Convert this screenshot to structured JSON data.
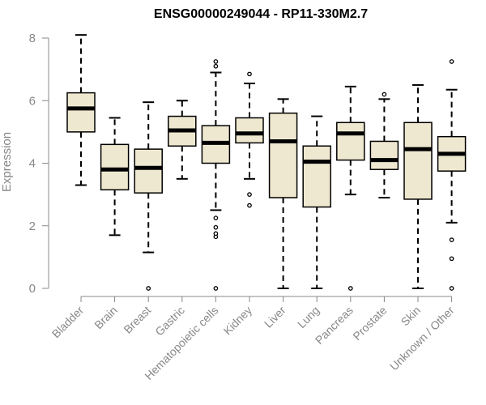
{
  "chart_data": {
    "type": "boxplot",
    "title": "ENSG00000249044 - RP11-330M2.7",
    "xlabel": "",
    "ylabel": "Expression",
    "ylim": [
      0,
      8
    ],
    "yticks": [
      0,
      2,
      4,
      6,
      8
    ],
    "colors": {
      "box_fill": "#efe8d0",
      "box_stroke": "#000000",
      "axis": "#888888"
    },
    "categories": [
      "Bladder",
      "Brain",
      "Breast",
      "Gastric",
      "Hematopoietic cells",
      "Kidney",
      "Liver",
      "Lung",
      "Pancreas",
      "Prostate",
      "Skin",
      "Unknown / Other"
    ],
    "boxes": [
      {
        "whisker_low": 3.3,
        "q1": 5.0,
        "median": 5.75,
        "q3": 6.25,
        "whisker_high": 8.1,
        "outliers": []
      },
      {
        "whisker_low": 1.7,
        "q1": 3.15,
        "median": 3.8,
        "q3": 4.6,
        "whisker_high": 5.45,
        "outliers": []
      },
      {
        "whisker_low": 1.15,
        "q1": 3.05,
        "median": 3.85,
        "q3": 4.45,
        "whisker_high": 5.95,
        "outliers": [
          0.0
        ]
      },
      {
        "whisker_low": 3.5,
        "q1": 4.55,
        "median": 5.05,
        "q3": 5.5,
        "whisker_high": 6.0,
        "outliers": []
      },
      {
        "whisker_low": 2.5,
        "q1": 4.0,
        "median": 4.65,
        "q3": 5.2,
        "whisker_high": 6.9,
        "outliers": [
          0.0,
          1.65,
          1.75,
          1.95,
          2.25,
          7.1,
          7.25
        ]
      },
      {
        "whisker_low": 3.5,
        "q1": 4.65,
        "median": 4.95,
        "q3": 5.45,
        "whisker_high": 6.55,
        "outliers": [
          2.65,
          3.0,
          6.85
        ]
      },
      {
        "whisker_low": 0.0,
        "q1": 2.9,
        "median": 4.7,
        "q3": 5.6,
        "whisker_high": 6.05,
        "outliers": []
      },
      {
        "whisker_low": 0.0,
        "q1": 2.6,
        "median": 4.05,
        "q3": 4.55,
        "whisker_high": 5.5,
        "outliers": []
      },
      {
        "whisker_low": 3.0,
        "q1": 4.1,
        "median": 4.95,
        "q3": 5.3,
        "whisker_high": 6.45,
        "outliers": [
          0.0
        ]
      },
      {
        "whisker_low": 2.9,
        "q1": 3.8,
        "median": 4.1,
        "q3": 4.7,
        "whisker_high": 6.05,
        "outliers": [
          6.2
        ]
      },
      {
        "whisker_low": 0.0,
        "q1": 2.85,
        "median": 4.45,
        "q3": 5.3,
        "whisker_high": 6.5,
        "outliers": []
      },
      {
        "whisker_low": 2.1,
        "q1": 3.75,
        "median": 4.3,
        "q3": 4.85,
        "whisker_high": 6.35,
        "outliers": [
          0.0,
          0.95,
          1.55,
          7.25
        ]
      }
    ]
  }
}
